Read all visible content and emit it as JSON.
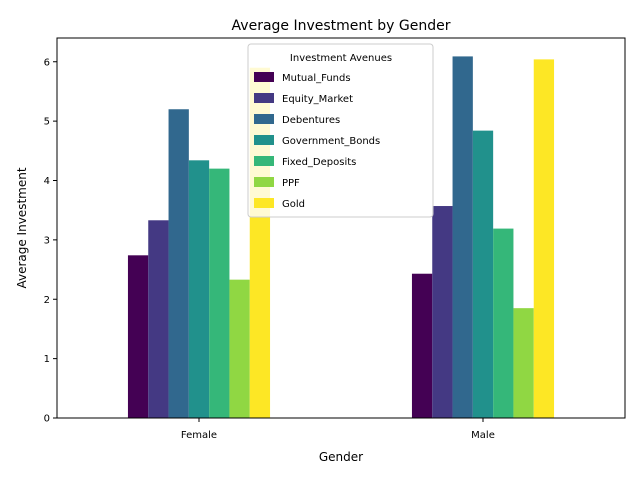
{
  "chart_data": {
    "type": "bar",
    "title": "Average Investment by Gender",
    "xlabel": "Gender",
    "ylabel": "Average Investment",
    "categories": [
      "Female",
      "Male"
    ],
    "ylim": [
      0,
      6.4
    ],
    "yticks": [
      "0",
      "1",
      "2",
      "3",
      "4",
      "5",
      "6"
    ],
    "grid": false,
    "legend": {
      "title": "Investment Avenues",
      "placement": "top-center"
    },
    "series": [
      {
        "name": "Mutual_Funds",
        "color": "#440154",
        "values": [
          2.74,
          2.43
        ]
      },
      {
        "name": "Equity_Market",
        "color": "#443983",
        "values": [
          3.33,
          3.57
        ]
      },
      {
        "name": "Debentures",
        "color": "#31688e",
        "values": [
          5.2,
          6.09
        ]
      },
      {
        "name": "Government_Bonds",
        "color": "#21918c",
        "values": [
          4.34,
          4.84
        ]
      },
      {
        "name": "Fixed_Deposits",
        "color": "#35b779",
        "values": [
          4.2,
          3.19
        ]
      },
      {
        "name": "PPF",
        "color": "#90d743",
        "values": [
          2.33,
          1.85
        ]
      },
      {
        "name": "Gold",
        "color": "#fde725",
        "values": [
          5.9,
          6.04
        ]
      }
    ]
  }
}
